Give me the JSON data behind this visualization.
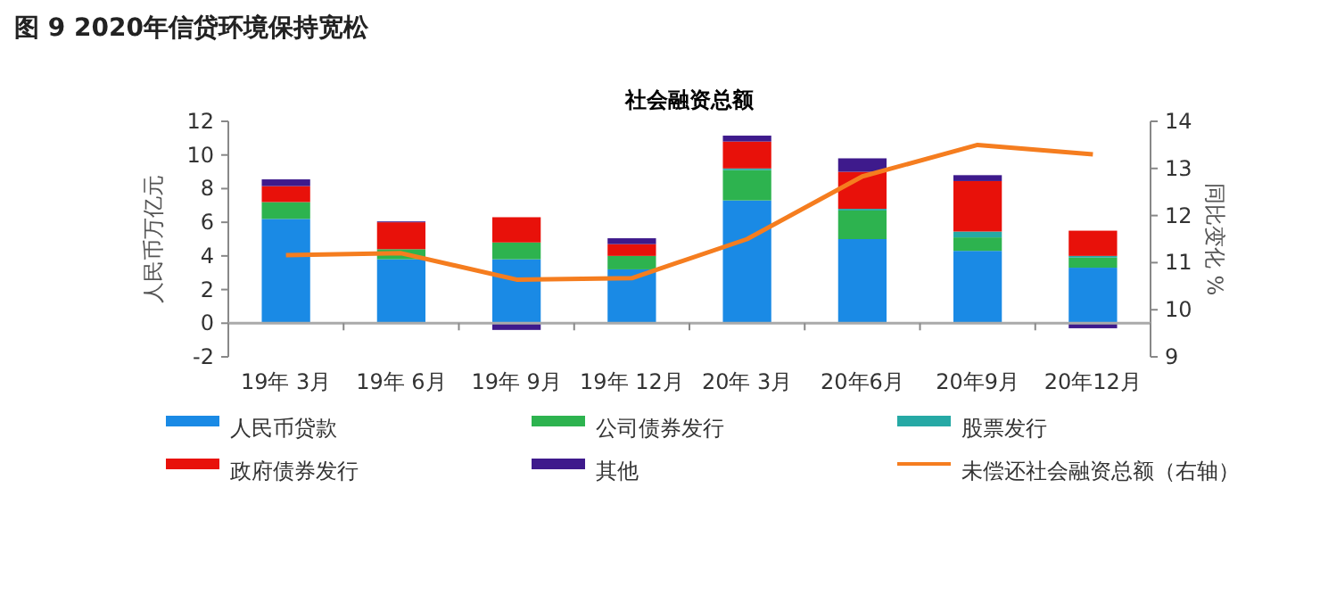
{
  "chart_data": {
    "type": "bar",
    "stacked": true,
    "title": "图 9  2020年信贷环境保持宽松",
    "subtitle": "社会融资总额",
    "ylabel": "人民币万亿元",
    "y2label": "同比变化 %",
    "categories": [
      "19年 3月",
      "19年 6月",
      "19年 9月",
      "19年 12月",
      "20年 3月",
      "20年6月",
      "20年9月",
      "20年12月"
    ],
    "series": [
      {
        "name": "人民币贷款",
        "color": "#1a8ae5",
        "values": [
          6.2,
          3.8,
          3.8,
          3.2,
          7.3,
          5.0,
          4.3,
          3.3
        ]
      },
      {
        "name": "公司债券发行",
        "color": "#2db34f",
        "values": [
          1.0,
          0.6,
          1.0,
          0.8,
          1.8,
          1.7,
          0.8,
          0.6
        ]
      },
      {
        "name": "股票发行",
        "color": "#26a9a5",
        "values": [
          0,
          0,
          0,
          0,
          0.1,
          0.1,
          0.35,
          0.1
        ]
      },
      {
        "name": "政府债券发行",
        "color": "#e8110a",
        "values": [
          0.95,
          1.6,
          1.5,
          0.7,
          1.6,
          2.2,
          3.0,
          1.5
        ]
      },
      {
        "name": "其他",
        "color": "#3e1a8c",
        "values": [
          0.4,
          0.05,
          -0.4,
          0.35,
          0.35,
          0.8,
          0.35,
          -0.3
        ]
      },
      {
        "name": "未偿还社会融资总额（右轴）",
        "color": "#f57d1f",
        "type": "line",
        "axis": "y2",
        "values": [
          11.16,
          11.2,
          10.64,
          10.67,
          11.5,
          12.83,
          13.5,
          13.3
        ]
      }
    ],
    "ylim": [
      -2,
      12
    ],
    "yticks": [
      -2,
      0,
      2,
      4,
      6,
      8,
      10,
      12
    ],
    "y2lim": [
      9,
      14
    ],
    "y2ticks": [
      9,
      10,
      11,
      12,
      13,
      14
    ],
    "legend": "bottom",
    "grid": false
  }
}
